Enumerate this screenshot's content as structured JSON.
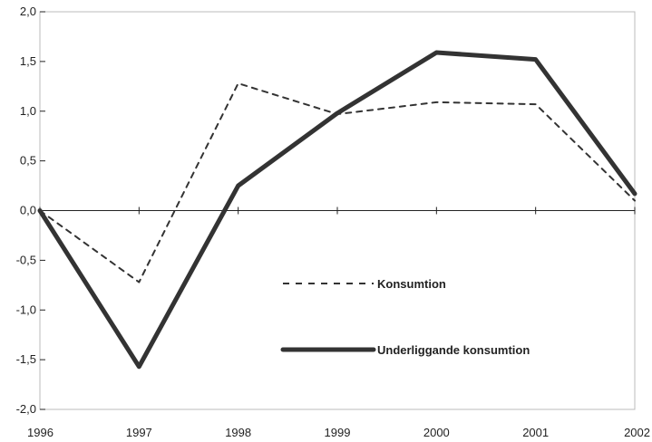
{
  "chart_data": {
    "type": "line",
    "title": "",
    "xlabel": "",
    "ylabel": "",
    "x": [
      1996,
      1997,
      1998,
      1999,
      2000,
      2001,
      2002
    ],
    "x_tick_labels": [
      "1996",
      "1997",
      "1998",
      "1999",
      "2000",
      "2001",
      "2002"
    ],
    "ylim": [
      -2.0,
      2.0
    ],
    "y_ticks": [
      2.0,
      1.5,
      1.0,
      0.5,
      0.0,
      -0.5,
      -1.0,
      -1.5,
      -2.0
    ],
    "y_tick_labels": [
      "2,0",
      "1,5",
      "1,0",
      "0,5",
      "0,0",
      "-0,5",
      "-1,0",
      "-1,5",
      "-2,0"
    ],
    "grid": false,
    "legend_position": "center-right",
    "series": [
      {
        "name": "Konsumtion",
        "style": "dashed",
        "color": "#333333",
        "values": [
          0.0,
          -0.72,
          1.28,
          0.97,
          1.09,
          1.07,
          0.1
        ]
      },
      {
        "name": "Underliggande konsumtion",
        "style": "solid",
        "color": "#333333",
        "values": [
          0.0,
          -1.57,
          0.25,
          0.98,
          1.59,
          1.52,
          0.17
        ]
      }
    ]
  }
}
